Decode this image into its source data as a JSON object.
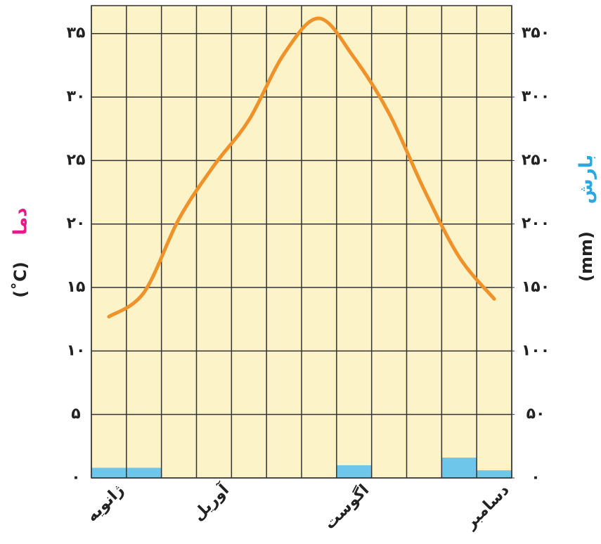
{
  "chart_data": {
    "type": "combo",
    "y_title": "دما",
    "y_unit": "(˚C)",
    "y2_title": "بارش",
    "y2_unit": "(mm)",
    "categories": [
      "ژانویه",
      null,
      null,
      "آوریل",
      null,
      null,
      null,
      "اگوست",
      null,
      null,
      null,
      "دسامبر"
    ],
    "temperature": {
      "color": "#f0922a",
      "values": [
        12.7,
        14.6,
        20.4,
        24.6,
        28.2,
        33.4,
        36.2,
        33.1,
        28.7,
        22.7,
        17.4,
        14.1
      ]
    },
    "precipitation": {
      "color": "#6ec6ea",
      "axis": "y2",
      "values": [
        8,
        8,
        0,
        0,
        0,
        0,
        0,
        10,
        0,
        0,
        16,
        6
      ]
    },
    "ylim": [
      0,
      37.2
    ],
    "yticks": [
      {
        "value": 0,
        "label": "۰"
      },
      {
        "value": 5,
        "label": "۵"
      },
      {
        "value": 10,
        "label": "۱۰"
      },
      {
        "value": 15,
        "label": "۱۵"
      },
      {
        "value": 20,
        "label": "۲۰"
      },
      {
        "value": 25,
        "label": "۲۵"
      },
      {
        "value": 30,
        "label": "۳۰"
      },
      {
        "value": 35,
        "label": "۳۵"
      }
    ],
    "y2lim": [
      0,
      372
    ],
    "y2ticks": [
      {
        "value": 0,
        "label": "۰"
      },
      {
        "value": 50,
        "label": "۵۰"
      },
      {
        "value": 100,
        "label": "۱۰۰"
      },
      {
        "value": 150,
        "label": "۱۵۰"
      },
      {
        "value": 200,
        "label": "۲۰۰"
      },
      {
        "value": 250,
        "label": "۲۵۰"
      },
      {
        "value": 300,
        "label": "۳۰۰"
      },
      {
        "value": 350,
        "label": "۳۵۰"
      }
    ],
    "grid": true,
    "background": "#fdf3c9"
  }
}
